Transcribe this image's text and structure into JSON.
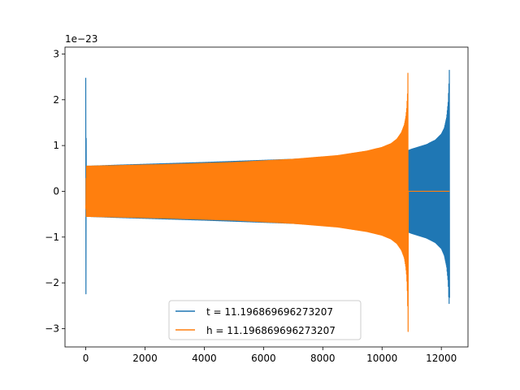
{
  "chart_data": {
    "type": "line",
    "title": "",
    "xlabel": "",
    "ylabel": "",
    "xlim": [
      -700,
      12900
    ],
    "ylim": [
      -3.4e-23,
      3.15e-23
    ],
    "y_offset_text": "1e−23",
    "x_ticks": [
      0,
      2000,
      4000,
      6000,
      8000,
      10000,
      12000
    ],
    "x_tick_labels": [
      "0",
      "2000",
      "4000",
      "6000",
      "8000",
      "10000",
      "12000"
    ],
    "y_ticks": [
      -3e-23,
      -2e-23,
      -1e-23,
      0,
      1e-23,
      2e-23,
      3e-23
    ],
    "y_tick_labels": [
      "−3",
      "−2",
      "−1",
      "0",
      "1",
      "2",
      "3"
    ],
    "grid": false,
    "legend_position": "lower-center",
    "series": [
      {
        "name": "t = 11.196869696273207",
        "color": "#1f77b4",
        "x_range": [
          0,
          12280
        ],
        "envelope_x": [
          0,
          20,
          60,
          150,
          1000,
          4000,
          7000,
          9000,
          10000,
          10500,
          10800,
          10880,
          11000,
          11500,
          11800,
          12000,
          12100,
          12180,
          12230,
          12260,
          12280
        ],
        "envelope_upper": [
          2.48e-23,
          5.5e-24,
          5.5e-24,
          5.5e-24,
          5.7e-24,
          6.3e-24,
          7e-24,
          7.7e-24,
          8.2e-24,
          8.6e-24,
          8.8e-24,
          8.9e-24,
          9.2e-24,
          1.02e-23,
          1.12e-23,
          1.25e-23,
          1.38e-23,
          1.62e-23,
          1.95e-23,
          2.4e-23,
          2.88e-23
        ],
        "envelope_lower": [
          -3.12e-23,
          -5.5e-24,
          -5.5e-24,
          -5.5e-24,
          -5.7e-24,
          -6.3e-24,
          -7e-24,
          -7.7e-24,
          -8.2e-24,
          -8.6e-24,
          -8.8e-24,
          -8.9e-24,
          -9.2e-24,
          -1.02e-23,
          -1.12e-23,
          -1.25e-23,
          -1.4e-23,
          -1.65e-23,
          -1.98e-23,
          -2.48e-23,
          -2.3e-23
        ]
      },
      {
        "name": "h = 11.196869696273207",
        "color": "#ff7f0e",
        "x_range": [
          0,
          12280
        ],
        "envelope_x": [
          0,
          20,
          60,
          150,
          1000,
          3000,
          5000,
          7000,
          8500,
          9500,
          10000,
          10300,
          10500,
          10650,
          10750,
          10800,
          10830,
          10860,
          10880,
          10882,
          12280
        ],
        "envelope_upper": [
          -3e-24,
          5.5e-24,
          5.5e-24,
          5.5e-24,
          5.6e-24,
          5.9e-24,
          6.3e-24,
          7e-24,
          7.8e-24,
          8.8e-24,
          9.6e-24,
          1.04e-23,
          1.14e-23,
          1.28e-23,
          1.45e-23,
          1.62e-23,
          1.8e-23,
          2.15e-23,
          2.88e-23,
          0,
          0
        ],
        "envelope_lower": [
          -3e-24,
          -5.5e-24,
          -5.5e-24,
          -5.5e-24,
          -5.6e-24,
          -5.9e-24,
          -6.3e-24,
          -7e-24,
          -7.8e-24,
          -8.8e-24,
          -9.6e-24,
          -1.04e-23,
          -1.14e-23,
          -1.28e-23,
          -1.45e-23,
          -1.65e-23,
          -1.85e-23,
          -2.3e-23,
          -3.12e-23,
          0,
          0
        ]
      }
    ]
  }
}
